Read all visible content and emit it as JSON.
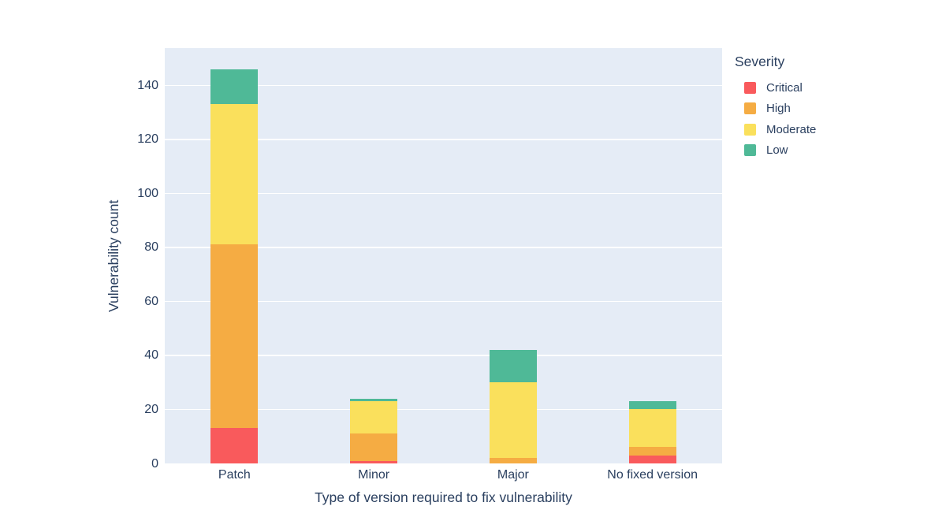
{
  "chart_data": {
    "type": "bar",
    "stacked": true,
    "title": "",
    "xlabel": "Type of version required to fix vulnerability",
    "ylabel": "Vulnerability count",
    "legend_title": "Severity",
    "legend_position": "right",
    "categories": [
      "Patch",
      "Minor",
      "Major",
      "No fixed version"
    ],
    "series": [
      {
        "name": "Critical",
        "color": "#F95A5C",
        "values": [
          13,
          1,
          0,
          3
        ]
      },
      {
        "name": "High",
        "color": "#F5AC43",
        "values": [
          68,
          10,
          2,
          3
        ]
      },
      {
        "name": "Moderate",
        "color": "#FAE05C",
        "values": [
          52,
          12,
          28,
          14
        ]
      },
      {
        "name": "Low",
        "color": "#4FB997",
        "values": [
          13,
          1,
          12,
          3
        ]
      }
    ],
    "stack_totals": [
      146,
      24,
      42,
      23
    ],
    "y_ticks": [
      0,
      20,
      40,
      60,
      80,
      100,
      120,
      140
    ],
    "ylim": [
      0,
      153.8
    ],
    "grid": true,
    "plot_bg": "#E5ECF6",
    "grid_color": "#FFFFFF",
    "text_color": "#2A3F5F"
  }
}
